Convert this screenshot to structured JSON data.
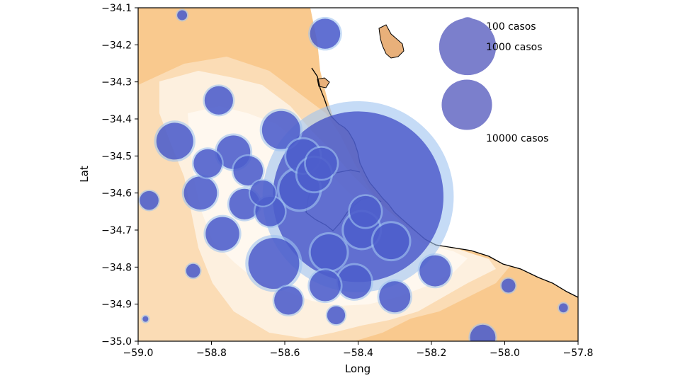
{
  "chart_data": {
    "type": "scatter",
    "title": "",
    "xlabel": "Long",
    "ylabel": "Lat",
    "xlim": [
      -59.0,
      -57.8
    ],
    "ylim": [
      -35.0,
      -34.1
    ],
    "xticks": [
      -59.0,
      -58.8,
      -58.6,
      -58.4,
      -58.2,
      -58.0,
      -57.8
    ],
    "yticks": [
      -34.1,
      -34.2,
      -34.3,
      -34.4,
      -34.5,
      -34.6,
      -34.7,
      -34.8,
      -34.9,
      -35.0
    ],
    "xtick_labels": [
      "−59.0",
      "−58.8",
      "−58.6",
      "−58.4",
      "−58.2",
      "−58.0",
      "−57.8"
    ],
    "ytick_labels": [
      "−34.1",
      "−34.2",
      "−34.3",
      "−34.4",
      "−34.5",
      "−34.6",
      "−34.7",
      "−34.8",
      "−34.9",
      "−35.0"
    ],
    "grid": false,
    "bubble_color": "#3a46c4",
    "halo_color": "#9fc3f0",
    "series": [
      {
        "points": [
          {
            "x": -58.4,
            "y": -34.61,
            "cases": 9000
          },
          {
            "x": -58.88,
            "y": -34.12,
            "cases": 30
          },
          {
            "x": -58.49,
            "y": -34.17,
            "cases": 280
          },
          {
            "x": -58.78,
            "y": -34.35,
            "cases": 250
          },
          {
            "x": -58.9,
            "y": -34.46,
            "cases": 420
          },
          {
            "x": -58.81,
            "y": -34.52,
            "cases": 250
          },
          {
            "x": -58.74,
            "y": -34.49,
            "cases": 350
          },
          {
            "x": -58.7,
            "y": -34.54,
            "cases": 270
          },
          {
            "x": -58.83,
            "y": -34.6,
            "cases": 340
          },
          {
            "x": -58.97,
            "y": -34.62,
            "cases": 110
          },
          {
            "x": -58.71,
            "y": -34.63,
            "cases": 290
          },
          {
            "x": -58.66,
            "y": -34.6,
            "cases": 200
          },
          {
            "x": -58.64,
            "y": -34.65,
            "cases": 270
          },
          {
            "x": -58.61,
            "y": -34.43,
            "cases": 450
          },
          {
            "x": -58.55,
            "y": -34.5,
            "cases": 350
          },
          {
            "x": -58.5,
            "y": -34.52,
            "cases": 300
          },
          {
            "x": -58.56,
            "y": -34.59,
            "cases": 500
          },
          {
            "x": -58.52,
            "y": -34.55,
            "cases": 350
          },
          {
            "x": -58.77,
            "y": -34.71,
            "cases": 350
          },
          {
            "x": -58.63,
            "y": -34.79,
            "cases": 800
          },
          {
            "x": -58.85,
            "y": -34.81,
            "cases": 60
          },
          {
            "x": -58.48,
            "y": -34.76,
            "cases": 400
          },
          {
            "x": -58.38,
            "y": -34.65,
            "cases": 300
          },
          {
            "x": -58.39,
            "y": -34.7,
            "cases": 400
          },
          {
            "x": -58.31,
            "y": -34.73,
            "cases": 400
          },
          {
            "x": -58.41,
            "y": -34.84,
            "cases": 350
          },
          {
            "x": -58.49,
            "y": -34.85,
            "cases": 300
          },
          {
            "x": -58.3,
            "y": -34.88,
            "cases": 300
          },
          {
            "x": -58.19,
            "y": -34.81,
            "cases": 300
          },
          {
            "x": -58.59,
            "y": -34.89,
            "cases": 250
          },
          {
            "x": -58.46,
            "y": -34.93,
            "cases": 100
          },
          {
            "x": -57.99,
            "y": -34.85,
            "cases": 60
          },
          {
            "x": -58.06,
            "y": -34.99,
            "cases": 200
          },
          {
            "x": -57.84,
            "y": -34.91,
            "cases": 25
          },
          {
            "x": -58.98,
            "y": -34.94,
            "cases": 10
          }
        ]
      }
    ],
    "legend": {
      "placement": "top-right",
      "entries": [
        {
          "label": "100 casos",
          "cases": 100
        },
        {
          "label": "1000 casos",
          "cases": 1000
        },
        {
          "label": "10000 casos",
          "cases": 10000
        }
      ],
      "color": "#7b7fcc"
    },
    "map_colors": {
      "water": "#ffffff",
      "land_dark": "#f9c98e",
      "land_mid": "#fbdcb5",
      "land_light": "#fdf0df",
      "land_pale": "#fff8ef",
      "island": "#e8b07a",
      "coastline": "#000000"
    }
  }
}
